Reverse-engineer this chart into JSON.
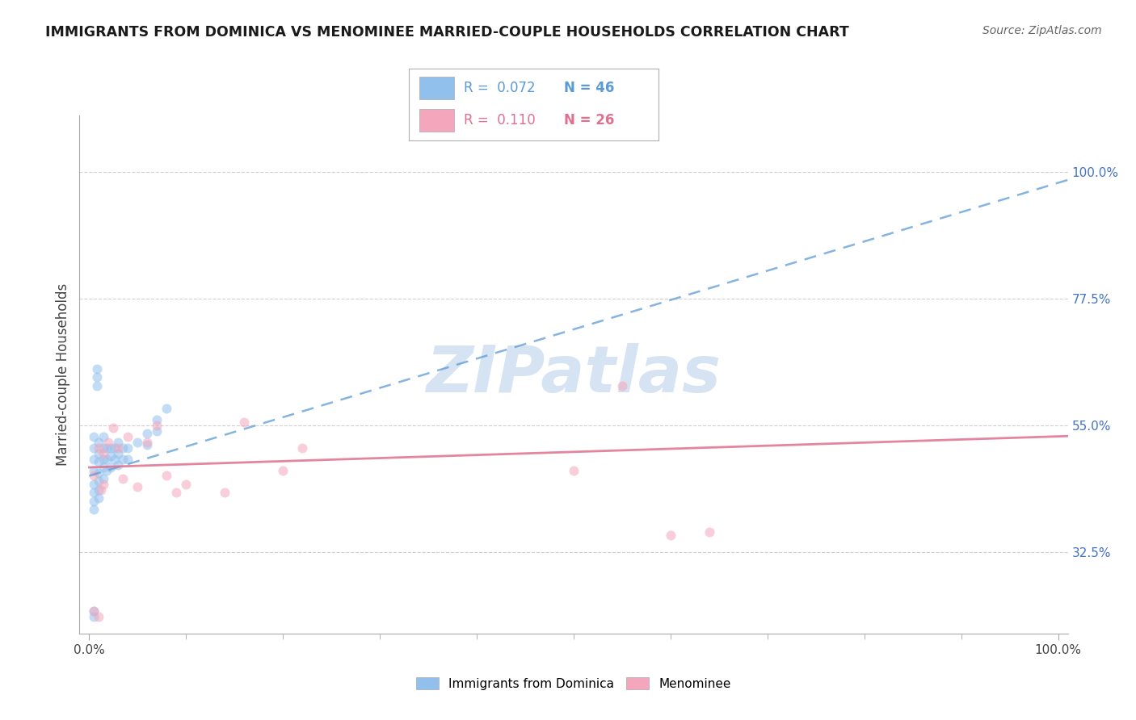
{
  "title": "IMMIGRANTS FROM DOMINICA VS MENOMINEE MARRIED-COUPLE HOUSEHOLDS CORRELATION CHART",
  "source": "Source: ZipAtlas.com",
  "ylabel": "Married-couple Households",
  "xlim": [
    -0.01,
    1.01
  ],
  "ylim": [
    0.18,
    1.1
  ],
  "ytick_values": [
    0.325,
    0.55,
    0.775,
    1.0
  ],
  "ytick_labels": [
    "32.5%",
    "55.0%",
    "77.5%",
    "100.0%"
  ],
  "xtick_values": [
    0.0,
    1.0
  ],
  "xtick_labels": [
    "0.0%",
    "100.0%"
  ],
  "grid_color": "#d0d0d0",
  "background_color": "#ffffff",
  "blue_color": "#92c0ed",
  "pink_color": "#f4a6bc",
  "blue_line_color": "#5b9bd5",
  "pink_line_color": "#e07090",
  "legend_R_blue": "0.072",
  "legend_N_blue": "46",
  "legend_R_pink": "0.110",
  "legend_N_pink": "26",
  "blue_scatter_x": [
    0.005,
    0.005,
    0.005,
    0.005,
    0.005,
    0.005,
    0.005,
    0.005,
    0.01,
    0.01,
    0.01,
    0.01,
    0.01,
    0.01,
    0.01,
    0.015,
    0.015,
    0.015,
    0.015,
    0.015,
    0.018,
    0.018,
    0.018,
    0.022,
    0.022,
    0.022,
    0.026,
    0.026,
    0.03,
    0.03,
    0.03,
    0.035,
    0.035,
    0.04,
    0.04,
    0.05,
    0.06,
    0.06,
    0.07,
    0.07,
    0.08,
    0.005,
    0.005,
    0.008,
    0.008,
    0.008
  ],
  "blue_scatter_y": [
    0.47,
    0.49,
    0.51,
    0.53,
    0.445,
    0.43,
    0.415,
    0.4,
    0.52,
    0.5,
    0.485,
    0.465,
    0.45,
    0.435,
    0.42,
    0.53,
    0.51,
    0.49,
    0.475,
    0.455,
    0.51,
    0.49,
    0.47,
    0.51,
    0.495,
    0.475,
    0.51,
    0.49,
    0.52,
    0.5,
    0.48,
    0.51,
    0.49,
    0.51,
    0.49,
    0.52,
    0.535,
    0.515,
    0.56,
    0.54,
    0.58,
    0.22,
    0.21,
    0.65,
    0.635,
    0.62
  ],
  "pink_scatter_x": [
    0.005,
    0.01,
    0.015,
    0.02,
    0.025,
    0.03,
    0.035,
    0.04,
    0.05,
    0.06,
    0.07,
    0.08,
    0.09,
    0.1,
    0.14,
    0.16,
    0.2,
    0.22,
    0.5,
    0.55,
    0.6,
    0.64,
    0.005,
    0.01,
    0.012,
    0.015
  ],
  "pink_scatter_y": [
    0.46,
    0.51,
    0.5,
    0.52,
    0.545,
    0.51,
    0.455,
    0.53,
    0.44,
    0.52,
    0.55,
    0.46,
    0.43,
    0.445,
    0.43,
    0.555,
    0.47,
    0.51,
    0.47,
    0.62,
    0.355,
    0.36,
    0.22,
    0.21,
    0.435,
    0.445
  ],
  "watermark_color": "#c5d8ed",
  "marker_size": 75,
  "marker_alpha": 0.55
}
